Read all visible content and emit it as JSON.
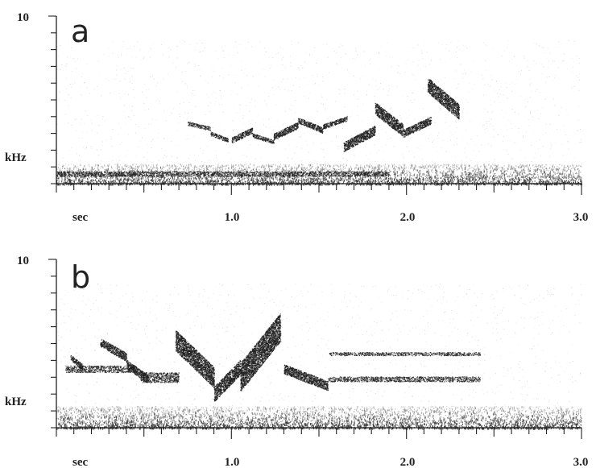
{
  "chart_data": [
    {
      "type": "heatmap",
      "panel_label": "a",
      "xlabel": "sec",
      "ylabel": "kHz",
      "x_ticks": [
        "1.0",
        "2.0",
        "3.0"
      ],
      "y_max_label": "10",
      "xlim": [
        0,
        3
      ],
      "ylim": [
        0,
        10
      ],
      "x_minor_step": 0.1,
      "y_minor_step": 1,
      "noise_band_khz": [
        0,
        1.2
      ],
      "elements": [
        {
          "t0": 0.0,
          "t1": 1.9,
          "f0": 0.45,
          "f1": 0.75,
          "shape": "flat"
        },
        {
          "t0": 0.75,
          "t1": 0.88,
          "f0": 3.3,
          "f1": 3.6,
          "shape": "down"
        },
        {
          "t0": 0.88,
          "t1": 0.98,
          "f0": 2.6,
          "f1": 3.0,
          "shape": "down"
        },
        {
          "t0": 1.0,
          "t1": 1.12,
          "f0": 2.6,
          "f1": 3.2,
          "shape": "up"
        },
        {
          "t0": 1.12,
          "t1": 1.24,
          "f0": 2.5,
          "f1": 2.9,
          "shape": "down"
        },
        {
          "t0": 1.24,
          "t1": 1.38,
          "f0": 2.8,
          "f1": 3.5,
          "shape": "up"
        },
        {
          "t0": 1.38,
          "t1": 1.52,
          "f0": 3.2,
          "f1": 3.8,
          "shape": "down"
        },
        {
          "t0": 1.52,
          "t1": 1.66,
          "f0": 3.4,
          "f1": 3.9,
          "shape": "up"
        },
        {
          "t0": 1.64,
          "t1": 1.82,
          "f0": 2.2,
          "f1": 3.2,
          "shape": "up"
        },
        {
          "t0": 1.82,
          "t1": 1.98,
          "f0": 3.2,
          "f1": 4.5,
          "shape": "down"
        },
        {
          "t0": 1.98,
          "t1": 2.14,
          "f0": 3.0,
          "f1": 3.8,
          "shape": "up"
        },
        {
          "t0": 2.12,
          "t1": 2.3,
          "f0": 4.3,
          "f1": 5.9,
          "shape": "down"
        }
      ]
    },
    {
      "type": "heatmap",
      "panel_label": "b",
      "xlabel": "sec",
      "ylabel": "kHz",
      "x_ticks": [
        "1.0",
        "2.0",
        "3.0"
      ],
      "y_max_label": "10",
      "xlim": [
        0,
        3
      ],
      "ylim": [
        0,
        10
      ],
      "x_minor_step": 0.1,
      "y_minor_step": 1,
      "noise_band_khz": [
        0,
        1.3
      ],
      "elements": [
        {
          "t0": 0.05,
          "t1": 0.45,
          "f0": 3.3,
          "f1": 3.7,
          "shape": "flat"
        },
        {
          "t0": 0.08,
          "t1": 0.15,
          "f0": 3.6,
          "f1": 4.2,
          "shape": "down"
        },
        {
          "t0": 0.25,
          "t1": 0.4,
          "f0": 4.2,
          "f1": 5.1,
          "shape": "down"
        },
        {
          "t0": 0.4,
          "t1": 0.52,
          "f0": 2.9,
          "f1": 3.8,
          "shape": "down"
        },
        {
          "t0": 0.48,
          "t1": 0.7,
          "f0": 2.7,
          "f1": 3.3,
          "shape": "flat"
        },
        {
          "t0": 0.68,
          "t1": 0.9,
          "f0": 3.0,
          "f1": 5.2,
          "shape": "down"
        },
        {
          "t0": 0.9,
          "t1": 1.05,
          "f0": 2.0,
          "f1": 3.6,
          "shape": "up"
        },
        {
          "t0": 1.05,
          "t1": 1.28,
          "f0": 3.0,
          "f1": 6.0,
          "shape": "up"
        },
        {
          "t0": 1.3,
          "t1": 1.55,
          "f0": 2.5,
          "f1": 3.5,
          "shape": "down"
        },
        {
          "t0": 1.55,
          "t1": 2.42,
          "f0": 2.75,
          "f1": 3.05,
          "shape": "flat"
        },
        {
          "t0": 1.55,
          "t1": 2.42,
          "f0": 4.3,
          "f1": 4.5,
          "shape": "flat"
        }
      ]
    }
  ]
}
